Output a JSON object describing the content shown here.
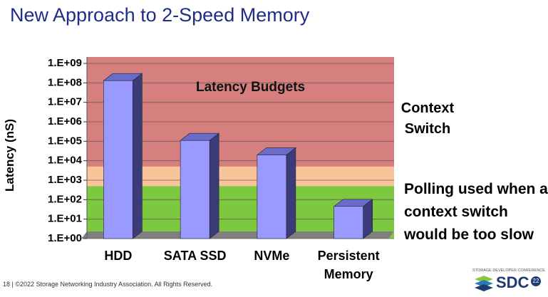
{
  "chart_data": {
    "type": "bar",
    "title": "New Approach to 2-Speed Memory",
    "y_label": "Latency (nS)",
    "categories": [
      "HDD",
      "SATA SSD",
      "NVMe",
      "Persistent Memory"
    ],
    "values": [
      130000000,
      110000,
      20000,
      45
    ],
    "color": "#9999ff",
    "log_scale": true,
    "ylim": [
      1,
      1000000000
    ],
    "yticks": [
      {
        "value": 1,
        "label": "1.E+00"
      },
      {
        "value": 10,
        "label": "1.E+01"
      },
      {
        "value": 100,
        "label": "1.E+02"
      },
      {
        "value": 1000,
        "label": "1.E+03"
      },
      {
        "value": 10000,
        "label": "1.E+04"
      },
      {
        "value": 100000,
        "label": "1.E+05"
      },
      {
        "value": 1000000,
        "label": "1.E+06"
      },
      {
        "value": 10000000,
        "label": "1.E+07"
      },
      {
        "value": 100000000,
        "label": "1.E+08"
      },
      {
        "value": 1000000000,
        "label": "1.E+09"
      }
    ],
    "grid": true,
    "bands": [
      {
        "from": 1,
        "to": 500,
        "color": "#7cc83e"
      },
      {
        "from": 500,
        "to": 5000,
        "color": "#f9c49a"
      },
      {
        "from": 5000,
        "to": 1000000000,
        "color": "#d67f7f"
      }
    ],
    "annotations": [
      "Latency Budgets",
      "Context Switch",
      "Polling used when a context switch would be too slow"
    ]
  },
  "footer": {
    "text": "18 | ©2022 Storage Networking Industry Association. All Rights Reserved.",
    "logo_caption": "STORAGE DEVELOPER CONFERENCE",
    "logo": "SDC",
    "logo_year": "22"
  }
}
